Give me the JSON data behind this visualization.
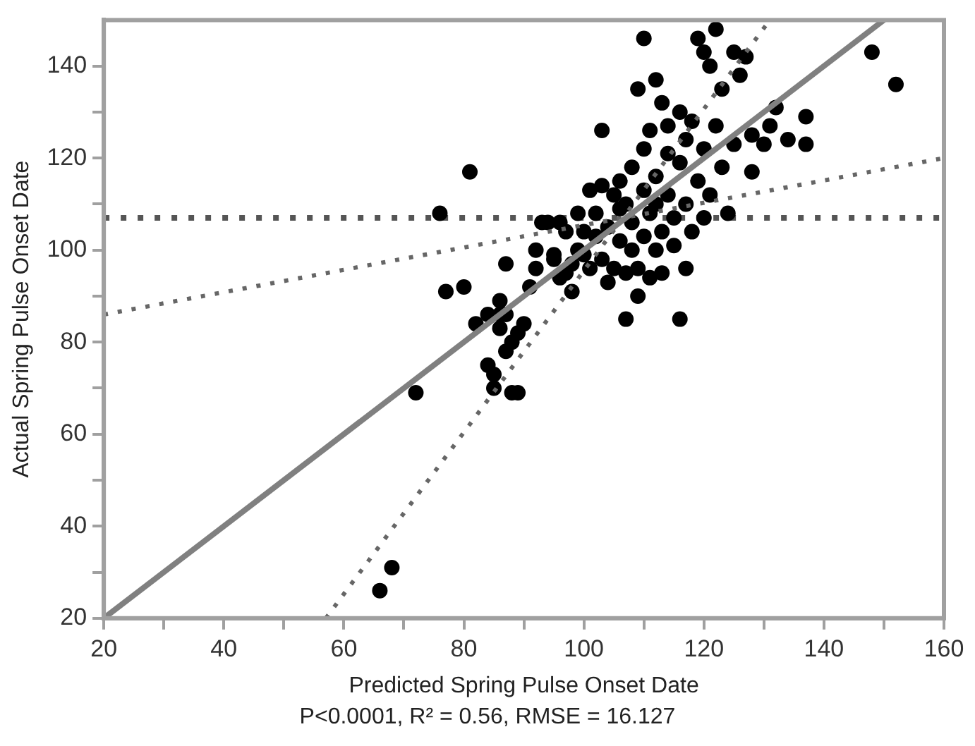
{
  "chart_data": {
    "type": "scatter",
    "xlabel": "Predicted Spring Pulse Onset Date",
    "ylabel": "Actual Spring Pulse Onset Date",
    "annotations": [
      "P<0.0001, R² = 0.56, RMSE = 16.127"
    ],
    "xlim": [
      20,
      160
    ],
    "ylim": [
      20,
      150
    ],
    "xticks": [
      20,
      {
        "value": 30,
        "label": null
      },
      40,
      {
        "value": 50,
        "label": null
      },
      60,
      {
        "value": 70,
        "label": null
      },
      80,
      {
        "value": 90,
        "label": null
      },
      100,
      {
        "value": 110,
        "label": null
      },
      120,
      {
        "value": 130,
        "label": null
      },
      140,
      {
        "value": 150,
        "label": null
      },
      160
    ],
    "yticks": [
      20,
      {
        "value": 30,
        "label": null
      },
      40,
      {
        "value": 50,
        "label": null
      },
      60,
      {
        "value": 70,
        "label": null
      },
      80,
      {
        "value": 90,
        "label": null
      },
      100,
      {
        "value": 110,
        "label": null
      },
      120,
      {
        "value": 130,
        "label": null
      },
      140
    ],
    "legend": false,
    "ref_lines": [
      {
        "axis": "y",
        "value": 107,
        "color": "#555555",
        "line_style": "dotted"
      }
    ],
    "series": [
      {
        "type": "scatter",
        "marker": "circle",
        "color": "#000000",
        "x": [
          66,
          68,
          72,
          77,
          80,
          76,
          81,
          82,
          84,
          84,
          85,
          85,
          86,
          86,
          86,
          87,
          87,
          88,
          89,
          88,
          89,
          87,
          90,
          91,
          92,
          92,
          93,
          94,
          95,
          95,
          96,
          96,
          97,
          97,
          98,
          98,
          99,
          99,
          100,
          100,
          101,
          101,
          102,
          102,
          103,
          103,
          103,
          104,
          104,
          105,
          105,
          106,
          106,
          106,
          107,
          107,
          107,
          108,
          108,
          108,
          109,
          109,
          109,
          110,
          110,
          110,
          110,
          111,
          111,
          111,
          112,
          112,
          112,
          112,
          113,
          113,
          113,
          114,
          114,
          114,
          115,
          115,
          116,
          116,
          116,
          117,
          117,
          117,
          118,
          118,
          119,
          119,
          120,
          120,
          120,
          121,
          121,
          122,
          122,
          123,
          123,
          124,
          125,
          125,
          126,
          127,
          128,
          128,
          130,
          131,
          132,
          134,
          137,
          137,
          148,
          152
        ],
        "values": [
          26,
          31,
          69,
          91,
          92,
          108,
          117,
          84,
          86,
          75,
          70,
          73,
          89,
          86,
          83,
          78,
          86,
          69,
          69,
          80,
          82,
          97,
          84,
          92,
          96,
          100,
          106,
          106,
          99,
          98,
          106,
          94,
          95,
          104,
          91,
          97,
          100,
          108,
          104,
          99,
          96,
          113,
          103,
          108,
          126,
          114,
          98,
          93,
          105,
          112,
          96,
          102,
          109,
          115,
          85,
          95,
          110,
          100,
          106,
          118,
          135,
          96,
          90,
          146,
          103,
          113,
          122,
          94,
          108,
          126,
          100,
          110,
          137,
          116,
          132,
          104,
          95,
          121,
          112,
          127,
          107,
          101,
          85,
          119,
          130,
          110,
          124,
          96,
          128,
          104,
          115,
          146,
          122,
          107,
          143,
          140,
          112,
          148,
          127,
          135,
          118,
          108,
          143,
          123,
          138,
          142,
          125,
          117,
          123,
          127,
          131,
          124,
          129,
          123,
          143,
          136
        ]
      },
      {
        "type": "line",
        "marker": "none",
        "color": "#808080",
        "line_style": "solid",
        "x": [
          20,
          150
        ],
        "values": [
          20,
          150
        ]
      },
      {
        "type": "line",
        "marker": "none",
        "color": "#666666",
        "line_style": "dotted",
        "x": [
          20,
          160
        ],
        "values": [
          86,
          120
        ]
      },
      {
        "type": "line",
        "marker": "none",
        "color": "#666666",
        "line_style": "dotted",
        "x": [
          57,
          131
        ],
        "values": [
          20,
          150
        ]
      }
    ]
  }
}
